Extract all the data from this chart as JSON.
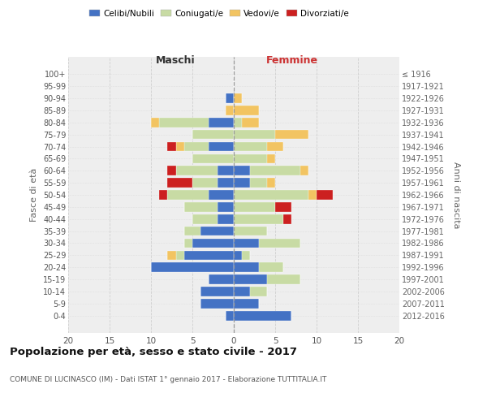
{
  "age_groups": [
    "100+",
    "95-99",
    "90-94",
    "85-89",
    "80-84",
    "75-79",
    "70-74",
    "65-69",
    "60-64",
    "55-59",
    "50-54",
    "45-49",
    "40-44",
    "35-39",
    "30-34",
    "25-29",
    "20-24",
    "15-19",
    "10-14",
    "5-9",
    "0-4"
  ],
  "birth_years": [
    "≤ 1916",
    "1917-1921",
    "1922-1926",
    "1927-1931",
    "1932-1936",
    "1937-1941",
    "1942-1946",
    "1947-1951",
    "1952-1956",
    "1957-1961",
    "1962-1966",
    "1967-1971",
    "1972-1976",
    "1977-1981",
    "1982-1986",
    "1987-1991",
    "1992-1996",
    "1997-2001",
    "2002-2006",
    "2007-2011",
    "2012-2016"
  ],
  "maschi": {
    "celibi": [
      0,
      0,
      1,
      0,
      3,
      0,
      3,
      0,
      2,
      2,
      3,
      2,
      2,
      4,
      5,
      6,
      10,
      3,
      4,
      4,
      1
    ],
    "coniugati": [
      0,
      0,
      0,
      0,
      6,
      5,
      3,
      5,
      5,
      3,
      5,
      4,
      3,
      2,
      1,
      1,
      0,
      0,
      0,
      0,
      0
    ],
    "vedovi": [
      0,
      0,
      0,
      1,
      1,
      0,
      1,
      0,
      0,
      0,
      0,
      0,
      0,
      0,
      0,
      1,
      0,
      0,
      0,
      0,
      0
    ],
    "divorziati": [
      0,
      0,
      0,
      0,
      0,
      0,
      1,
      0,
      1,
      3,
      1,
      0,
      0,
      0,
      0,
      0,
      0,
      0,
      0,
      0,
      0
    ]
  },
  "femmine": {
    "nubili": [
      0,
      0,
      0,
      0,
      0,
      0,
      0,
      0,
      2,
      2,
      0,
      0,
      0,
      0,
      3,
      1,
      3,
      4,
      2,
      3,
      7
    ],
    "coniugate": [
      0,
      0,
      0,
      0,
      1,
      5,
      4,
      4,
      6,
      2,
      9,
      5,
      6,
      4,
      5,
      1,
      3,
      4,
      2,
      0,
      0
    ],
    "vedove": [
      0,
      0,
      1,
      3,
      2,
      4,
      2,
      1,
      1,
      1,
      1,
      0,
      0,
      0,
      0,
      0,
      0,
      0,
      0,
      0,
      0
    ],
    "divorziate": [
      0,
      0,
      0,
      0,
      0,
      0,
      0,
      0,
      0,
      0,
      2,
      2,
      1,
      0,
      0,
      0,
      0,
      0,
      0,
      0,
      0
    ]
  },
  "colors": {
    "celibi_nubili": "#4472c4",
    "coniugati": "#c8dba4",
    "vedovi": "#f2c462",
    "divorziati": "#cc2020"
  },
  "xlim": [
    -20,
    20
  ],
  "xticks": [
    -20,
    -15,
    -10,
    -5,
    0,
    5,
    10,
    15,
    20
  ],
  "xticklabels": [
    "20",
    "15",
    "10",
    "5",
    "0",
    "5",
    "10",
    "15",
    "20"
  ],
  "title": "Popolazione per età, sesso e stato civile - 2017",
  "subtitle": "COMUNE DI LUCINASCO (IM) - Dati ISTAT 1° gennaio 2017 - Elaborazione TUTTITALIA.IT",
  "ylabel_left": "Fasce di età",
  "ylabel_right": "Anni di nascita",
  "label_maschi": "Maschi",
  "label_femmine": "Femmine",
  "legend_labels": [
    "Celibi/Nubili",
    "Coniugati/e",
    "Vedovi/e",
    "Divorziati/e"
  ],
  "bg_color": "#eeeeee",
  "grid_color": "#cccccc",
  "maschi_label_color": "#333333",
  "femmine_label_color": "#cc3333"
}
